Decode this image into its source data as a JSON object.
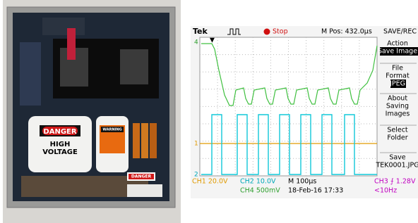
{
  "photo": {
    "labels": [
      "DANGER",
      "HIGH",
      "VOLTAGE",
      "WARNING",
      "DANGER"
    ]
  },
  "scope": {
    "brand": "Tek",
    "status": "Stop",
    "position": "M Pos: 432.0µs",
    "menu_title": "SAVE/REC",
    "menu": [
      {
        "label": [
          "Action"
        ],
        "value": "Save Image"
      },
      {
        "label": [
          "File",
          "Format"
        ],
        "value": "JPEG"
      },
      {
        "label": [
          "About",
          "Saving",
          "Images"
        ]
      },
      {
        "label": [
          "Select",
          "Folder"
        ]
      },
      {
        "label": [
          "Save"
        ],
        "value": "TEK0001.JPG"
      }
    ],
    "markers": [
      "4",
      "1",
      "2"
    ],
    "readouts": [
      {
        "text": "CH1  20.0V",
        "color": "#e09a00"
      },
      {
        "text": "CH2  10.0V",
        "color": "#00a8b8"
      },
      {
        "text": "M 100µs",
        "color": "#000000"
      },
      {
        "text": "CH3 ⨍ 1.28V",
        "color": "#c000c0"
      },
      {
        "text": "CH4  500mV",
        "color": "#30a030"
      },
      {
        "text": "18-Feb-16  17:33",
        "color": "#000000"
      },
      {
        "text": "<10Hz",
        "color": "#c000c0"
      }
    ]
  }
}
